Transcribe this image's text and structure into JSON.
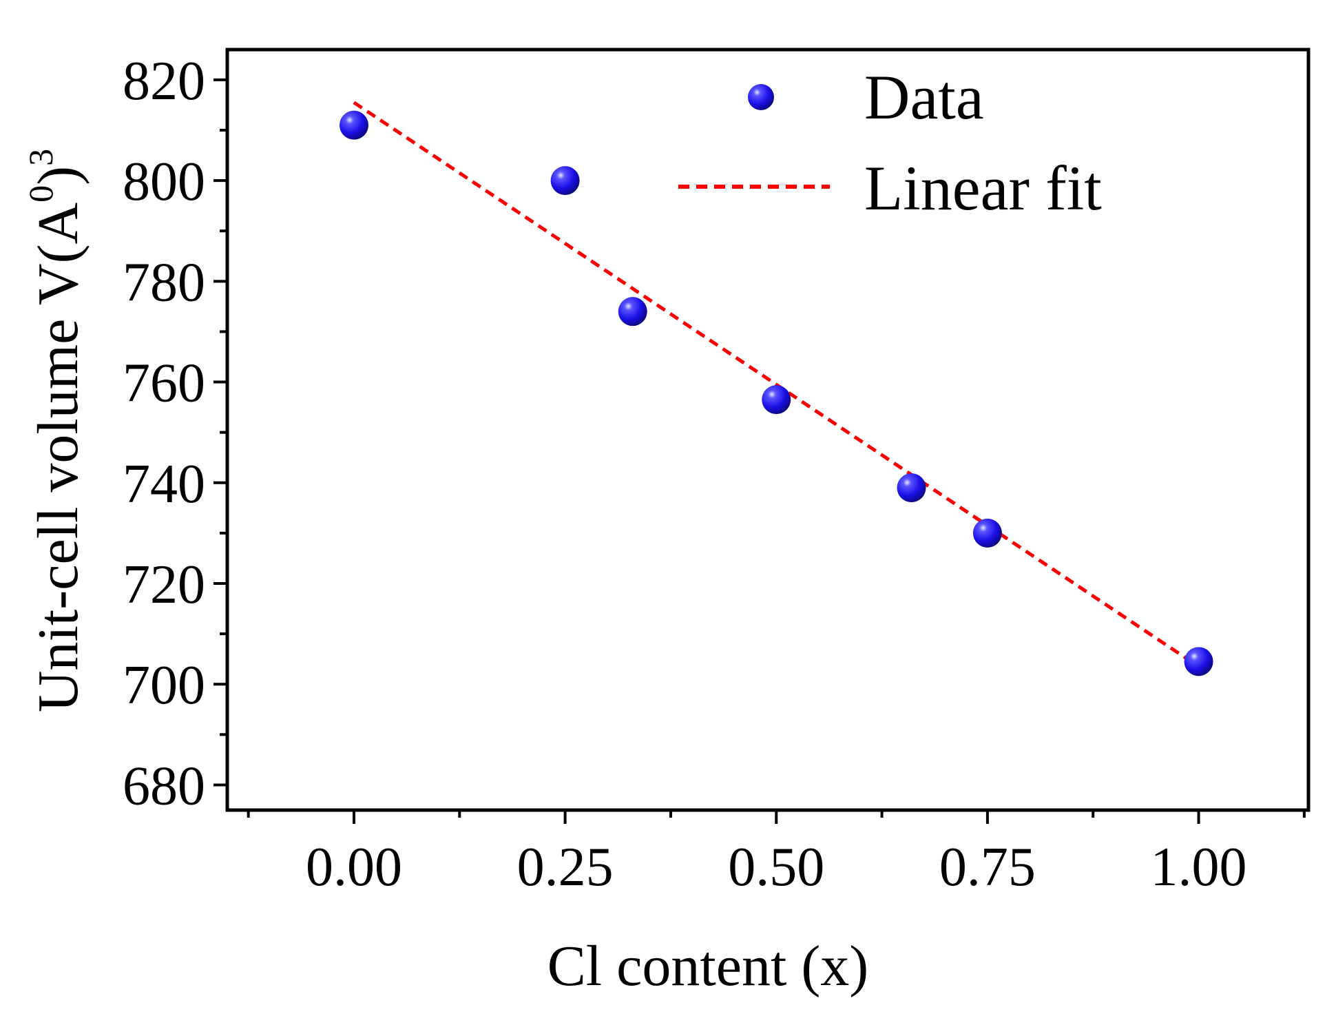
{
  "chart_data": {
    "type": "scatter",
    "title": "",
    "xlabel": "Cl content (x)",
    "ylabel": {
      "prefix": "Unit-cell volume V(A",
      "superscript_inner": "0",
      "suffix": ")",
      "superscript_outer": "3"
    },
    "xlim": [
      -0.15,
      1.13
    ],
    "ylim": [
      675,
      826
    ],
    "xticks": [
      0.0,
      0.25,
      0.5,
      0.75,
      1.0
    ],
    "xtick_labels": [
      "0.00",
      "0.25",
      "0.50",
      "0.75",
      "1.00"
    ],
    "xminor": [
      -0.125,
      0.125,
      0.375,
      0.625,
      0.875,
      1.125
    ],
    "yticks": [
      680,
      700,
      720,
      740,
      760,
      780,
      800,
      820
    ],
    "ytick_labels": [
      "680",
      "700",
      "720",
      "740",
      "760",
      "780",
      "800",
      "820"
    ],
    "yminor": [
      690,
      710,
      730,
      750,
      770,
      790,
      810
    ],
    "series": [
      {
        "name": "Data",
        "kind": "points",
        "x": [
          0.0,
          0.25,
          0.33,
          0.5,
          0.66,
          0.75,
          1.0
        ],
        "y": [
          811,
          800,
          774,
          756.5,
          739,
          730,
          704.5
        ]
      },
      {
        "name": "Linear fit",
        "kind": "line",
        "x": [
          0.0,
          1.0
        ],
        "y": [
          815.5,
          703.5
        ]
      }
    ],
    "legend": {
      "position": "top-right",
      "entries": [
        "Data",
        "Linear fit"
      ]
    },
    "colors": {
      "points": "#1a10e8",
      "points_dark": "#08056e",
      "points_highlight": "#c8c8ff",
      "fit_line": "#ff0000",
      "axes": "#000000"
    }
  }
}
